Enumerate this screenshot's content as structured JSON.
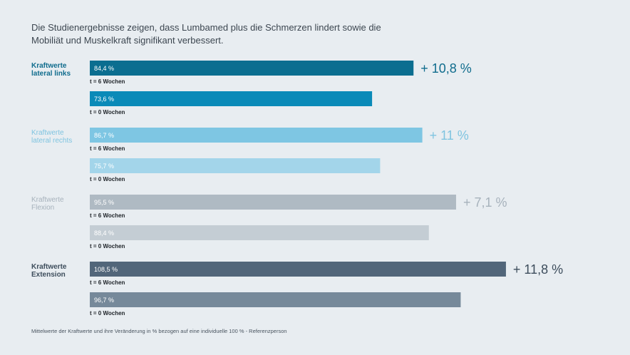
{
  "headline": {
    "line1": "Die Studienergebnisse zeigen, dass Lumbamed plus die Schmerzen lindert sowie die",
    "line2": "Mobiliät und Muskelkraft signifikant verbessert."
  },
  "footnote": "Mittelwerte der Kraftwerte und ihre Veränderung in % bezogen auf eine individuelle 100 % - Referenzperson",
  "chart_data": {
    "type": "bar",
    "orientation": "horizontal",
    "xlim": [
      0,
      110
    ],
    "groups": [
      {
        "label_lines": [
          "Kraftwerte",
          "lateral links"
        ],
        "label_color": "#0f6c8d",
        "change": "+ 10,8 %",
        "change_color": "#0f6c8d",
        "bars": [
          {
            "value": 84.4,
            "value_label": "84,4 %",
            "time_label": "t =  6 Wochen",
            "color": "#0b6e90"
          },
          {
            "value": 73.6,
            "value_label": "73,6 %",
            "time_label": "t =  0 Wochen",
            "color": "#0a8ab8"
          }
        ]
      },
      {
        "label_lines": [
          "Kraftwerte",
          "lateral rechts"
        ],
        "label_color": "#7fc4e0",
        "change": "+ 11 %",
        "change_color": "#7fc4e0",
        "bars": [
          {
            "value": 86.7,
            "value_label": "86,7 %",
            "time_label": "t =  6 Wochen",
            "color": "#7ec6e3"
          },
          {
            "value": 75.7,
            "value_label": "75,7 %",
            "time_label": "t =  0 Wochen",
            "color": "#a3d5ea"
          }
        ]
      },
      {
        "label_lines": [
          "Kraftwerte",
          "Flexion"
        ],
        "label_color": "#a7b2bc",
        "change": "+ 7,1 %",
        "change_color": "#a7b2bc",
        "bars": [
          {
            "value": 95.5,
            "value_label": "95,5 %",
            "time_label": "t =  6 Wochen",
            "color": "#afbac3"
          },
          {
            "value": 88.4,
            "value_label": "88,4 %",
            "time_label": "t =  0 Wochen",
            "color": "#c4cdd4"
          }
        ]
      },
      {
        "label_lines": [
          "Kraftwerte",
          "Extension"
        ],
        "label_color": "#3d4d5c",
        "change": "+ 11,8 %",
        "change_color": "#3d4d5c",
        "bars": [
          {
            "value": 108.5,
            "value_label": "108,5 %",
            "time_label": "t =  6 Wochen",
            "color": "#52667a"
          },
          {
            "value": 96.7,
            "value_label": "96,7 %",
            "time_label": "t =  0 Wochen",
            "color": "#76899a"
          }
        ]
      }
    ]
  }
}
